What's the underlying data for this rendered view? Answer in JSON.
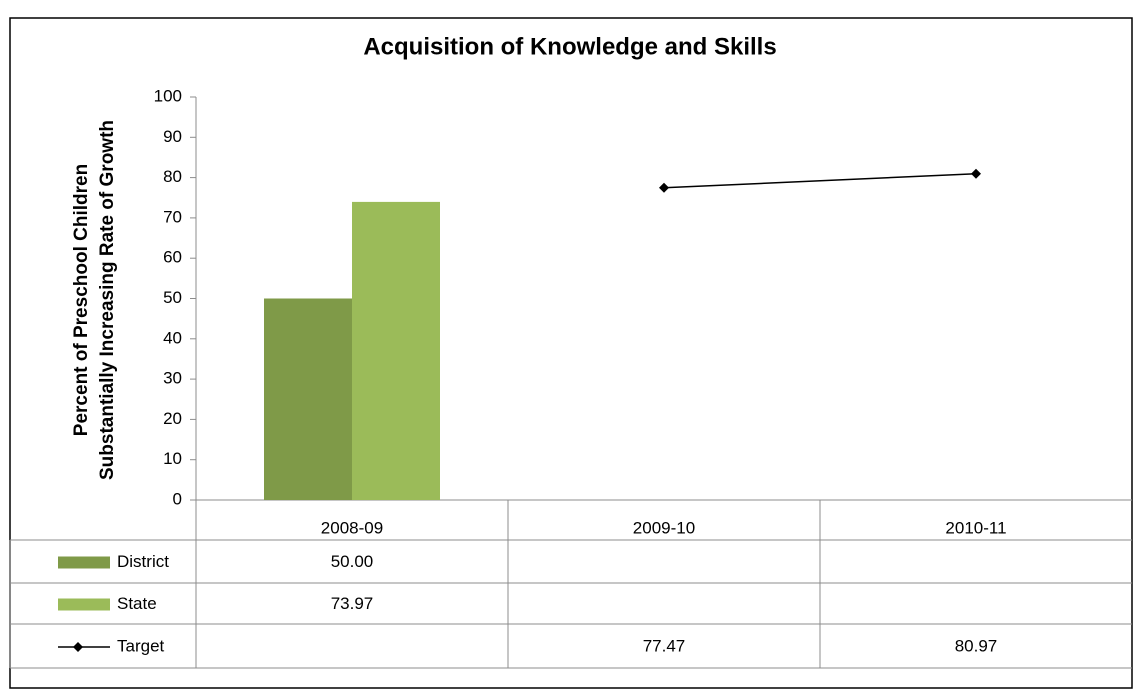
{
  "chart_data": {
    "type": "bar",
    "title": "Acquisition of Knowledge and Skills",
    "ylabel": [
      "Percent of Preschool Children",
      "Substantially Increasing Rate of Growth"
    ],
    "categories": [
      "2008-09",
      "2009-10",
      "2010-11"
    ],
    "series": [
      {
        "name": "District",
        "type": "bar",
        "color": "#7f9a48",
        "values": [
          50,
          null,
          null
        ],
        "value_labels": [
          "50.00",
          null,
          null
        ]
      },
      {
        "name": "State",
        "type": "bar",
        "color": "#9bbb59",
        "values": [
          73.97,
          null,
          null
        ],
        "value_labels": [
          "73.97",
          null,
          null
        ]
      },
      {
        "name": "Target",
        "type": "line",
        "color": "#000000",
        "values": [
          null,
          77.47,
          80.97
        ],
        "value_labels": [
          null,
          "77.47",
          "80.97"
        ]
      }
    ],
    "ylim": [
      0,
      100
    ],
    "yticks": [
      0,
      10,
      20,
      30,
      40,
      50,
      60,
      70,
      80,
      90,
      100
    ],
    "grid": false,
    "data_table": true
  }
}
